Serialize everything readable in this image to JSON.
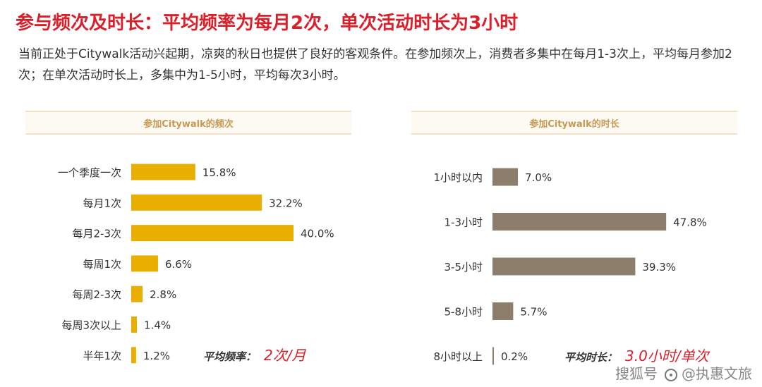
{
  "title": "参与频次及时长：平均频率为每月2次，单次活动时长为3小时",
  "subtitle": "当前正处于Citywalk活动兴起期，凉爽的秋日也提供了良好的客观条件。在参加频次上，消费者多集中在每月1-3次上，平均每月参加2次；在单次活动时长上，多集中为1-5小时，平均每次3小时。",
  "colors": {
    "title": "#d9202a",
    "freq_bar": "#e8ae00",
    "dur_bar": "#8c7e6a",
    "avg_value": "#d9202a",
    "header_text": "#c79a52"
  },
  "chart_data": [
    {
      "type": "bar",
      "orientation": "horizontal",
      "title": "参加Citywalk的频次",
      "categories": [
        "一个季度一次",
        "每月1次",
        "每月2-3次",
        "每周1次",
        "每周2-3次",
        "每周3次以上",
        "半年1次"
      ],
      "values": [
        15.8,
        32.2,
        40.0,
        6.6,
        2.8,
        1.4,
        1.2
      ],
      "value_labels": [
        "15.8%",
        "32.2%",
        "40.0%",
        "6.6%",
        "2.8%",
        "1.4%",
        "1.2%"
      ],
      "avg_label": "平均频率：",
      "avg_value": "2次/月",
      "grid": false
    },
    {
      "type": "bar",
      "orientation": "horizontal",
      "title": "参加Citywalk的时长",
      "categories": [
        "1小时以内",
        "1-3小时",
        "3-5小时",
        "5-8小时",
        "8小时以上"
      ],
      "values": [
        7.0,
        47.8,
        39.3,
        5.7,
        0.2
      ],
      "value_labels": [
        "7.0%",
        "47.8%",
        "39.3%",
        "5.7%",
        "0.2%"
      ],
      "avg_label": "平均时长：",
      "avg_value": "3.0小时/单次",
      "grid": false
    }
  ],
  "watermark": {
    "brand": "搜狐号",
    "account": "@执惠文旅"
  }
}
